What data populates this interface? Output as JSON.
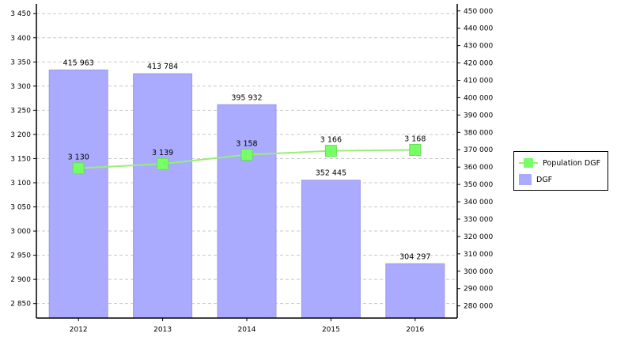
{
  "chart_data": {
    "type": "bar",
    "categories": [
      "2012",
      "2013",
      "2014",
      "2015",
      "2016"
    ],
    "left_axis": {
      "ylim": [
        2820,
        3470
      ],
      "ticks": [
        2850,
        2900,
        2950,
        3000,
        3050,
        3100,
        3150,
        3200,
        3250,
        3300,
        3350,
        3400,
        3450
      ],
      "tick_labels": [
        "2 850",
        "2 900",
        "2 950",
        "3 000",
        "3 050",
        "3 100",
        "3 150",
        "3 200",
        "3 250",
        "3 300",
        "3 350",
        "3 400",
        "3 450"
      ]
    },
    "right_axis": {
      "ylim": [
        273000,
        454000
      ],
      "ticks": [
        280000,
        290000,
        300000,
        310000,
        320000,
        330000,
        340000,
        350000,
        360000,
        370000,
        380000,
        390000,
        400000,
        410000,
        420000,
        430000,
        440000,
        450000
      ],
      "tick_labels": [
        "280 000",
        "290 000",
        "300 000",
        "310 000",
        "320 000",
        "330 000",
        "340 000",
        "350 000",
        "360 000",
        "370 000",
        "380 000",
        "390 000",
        "400 000",
        "410 000",
        "420 000",
        "430 000",
        "440 000",
        "450 000"
      ]
    },
    "series": [
      {
        "name": "Population DGF",
        "type": "line",
        "axis": "left",
        "values": [
          3130,
          3139,
          3158,
          3166,
          3168
        ],
        "labels": [
          "3 130",
          "3 139",
          "3 158",
          "3 166",
          "3 168"
        ],
        "line_color": "#99ee77",
        "marker_color": "#77ff66"
      },
      {
        "name": "DGF",
        "type": "bar",
        "axis": "right",
        "values": [
          415963,
          413784,
          395932,
          352445,
          304297
        ],
        "labels": [
          "415 963",
          "413 784",
          "395 932",
          "352 445",
          "304 297"
        ],
        "color": "#aaaaff"
      }
    ],
    "grid": true,
    "legend_position": "right"
  }
}
